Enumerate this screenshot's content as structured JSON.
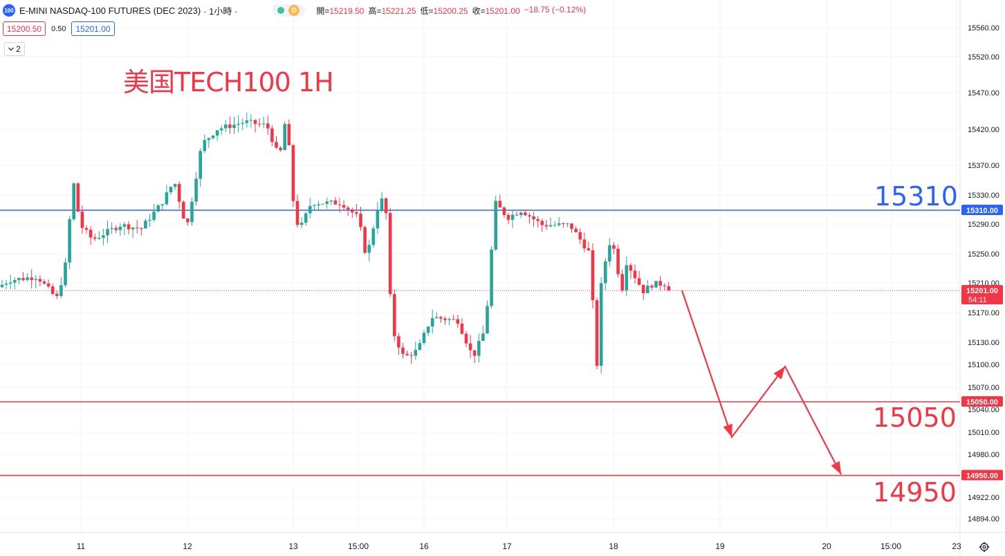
{
  "header": {
    "symbol_badge": "100",
    "symbol": "E-MINI NASDAQ-100 FUTURES (DEC 2023)",
    "interval": "· 1小時 ·",
    "d_badge": "D",
    "ohlc": [
      {
        "label": "開=",
        "value": "15219.50"
      },
      {
        "label": "高=",
        "value": "15221.25"
      },
      {
        "label": "低=",
        "value": "15200.25"
      },
      {
        "label": "收=",
        "value": "15201.00"
      },
      {
        "label": "",
        "value": "−18.75 (−0.12%)"
      }
    ]
  },
  "trade": {
    "sell": "15200.50",
    "spread": "0.50",
    "buy": "15201.00"
  },
  "collapse": {
    "count": "2",
    "icon": "chevron-down-icon"
  },
  "title": "美国TECH100 1H",
  "levels": {
    "resistance": "15310",
    "support1": "15050",
    "support2": "14950"
  },
  "colors": {
    "up": "#26a69a",
    "down": "#f23645",
    "blue": "#2962ff",
    "red": "#f23645"
  },
  "chart_data": {
    "type": "candlestick",
    "price_axis_labels": [
      "15560.00",
      "15520.00",
      "15470.00",
      "15420.00",
      "15370.00",
      "15330.00",
      "15290.00",
      "15250.00",
      "15210.00",
      "15170.00",
      "15130.00",
      "15100.00",
      "15070.00",
      "15040.00",
      "15010.00",
      "14980.00",
      "14922.00",
      "14894.00"
    ],
    "time_axis_labels": [
      "11",
      "12",
      "13",
      "15:00",
      "16",
      "17",
      "18",
      "19",
      "20",
      "15:00",
      "23"
    ],
    "price_tags": [
      {
        "label": "15310.00",
        "price": 15310,
        "color": "#2962ff"
      },
      {
        "label": "15201.00",
        "sub": "54:11",
        "price": 15201,
        "color": "#f23645"
      },
      {
        "label": "15050.00",
        "price": 15050,
        "color": "#f23645"
      },
      {
        "label": "14950.00",
        "price": 14950,
        "color": "#f23645"
      }
    ],
    "horizontal_lines": [
      {
        "price": 15310,
        "color": "#2962ff"
      },
      {
        "price": 15050,
        "color": "#f23645"
      },
      {
        "price": 14950,
        "color": "#f23645"
      }
    ],
    "current_price": 15201,
    "projection_path": [
      15201,
      15000,
      15100,
      14950
    ]
  }
}
